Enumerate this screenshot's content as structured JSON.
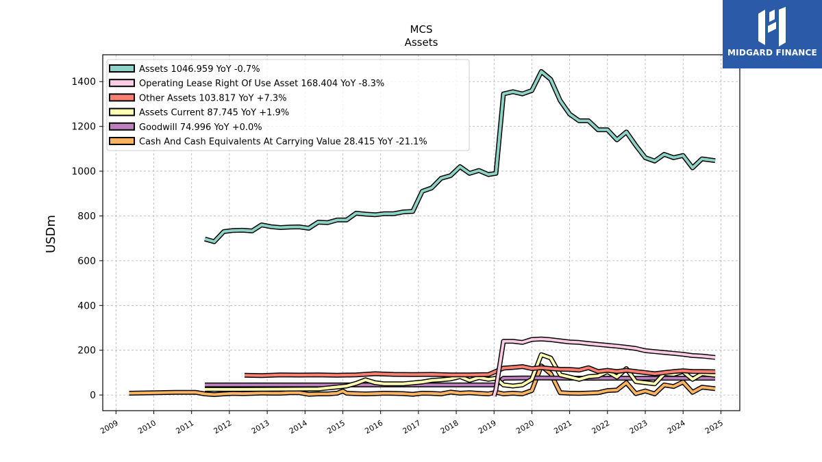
{
  "logo": {
    "text": "MIDGARD FINANCE",
    "icon": "mh-monogram-icon",
    "background": "#2a5aa8"
  },
  "chart_data": {
    "type": "line",
    "title": "MCS",
    "subtitle": "Assets",
    "ylabel": "USDm",
    "xlabel": "",
    "xlim": [
      2008.65,
      2025.5
    ],
    "ylim": [
      -70,
      1520
    ],
    "yticks": [
      0,
      200,
      400,
      600,
      800,
      1000,
      1200,
      1400
    ],
    "xticks": [
      2009,
      2010,
      2011,
      2012,
      2013,
      2014,
      2015,
      2016,
      2017,
      2018,
      2019,
      2020,
      2021,
      2022,
      2023,
      2024,
      2025
    ],
    "grid": true,
    "legend_position": "top-left",
    "series": [
      {
        "name": "Assets",
        "legend": "Assets  1046.959 YoY -0.7%",
        "color": "#8dd3c7",
        "points": [
          [
            2011.35,
            697
          ],
          [
            2011.6,
            685
          ],
          [
            2011.85,
            730
          ],
          [
            2012.1,
            735
          ],
          [
            2012.35,
            736
          ],
          [
            2012.6,
            733
          ],
          [
            2012.85,
            760
          ],
          [
            2013.1,
            752
          ],
          [
            2013.35,
            748
          ],
          [
            2013.6,
            750
          ],
          [
            2013.85,
            751
          ],
          [
            2014.1,
            745
          ],
          [
            2014.35,
            772
          ],
          [
            2014.6,
            770
          ],
          [
            2014.85,
            782
          ],
          [
            2015.1,
            782
          ],
          [
            2015.35,
            812
          ],
          [
            2015.6,
            808
          ],
          [
            2015.85,
            805
          ],
          [
            2016.1,
            810
          ],
          [
            2016.35,
            810
          ],
          [
            2016.6,
            818
          ],
          [
            2016.85,
            820
          ],
          [
            2017.1,
            910
          ],
          [
            2017.35,
            925
          ],
          [
            2017.6,
            968
          ],
          [
            2017.85,
            980
          ],
          [
            2018.1,
            1020
          ],
          [
            2018.35,
            990
          ],
          [
            2018.6,
            1003
          ],
          [
            2018.85,
            985
          ],
          [
            2019.05,
            990
          ],
          [
            2019.25,
            1345
          ],
          [
            2019.5,
            1355
          ],
          [
            2019.75,
            1345
          ],
          [
            2020.0,
            1360
          ],
          [
            2020.25,
            1445
          ],
          [
            2020.5,
            1410
          ],
          [
            2020.75,
            1315
          ],
          [
            2021.0,
            1255
          ],
          [
            2021.25,
            1225
          ],
          [
            2021.5,
            1225
          ],
          [
            2021.75,
            1185
          ],
          [
            2022.0,
            1185
          ],
          [
            2022.25,
            1140
          ],
          [
            2022.5,
            1175
          ],
          [
            2022.75,
            1115
          ],
          [
            2023.0,
            1060
          ],
          [
            2023.25,
            1045
          ],
          [
            2023.5,
            1075
          ],
          [
            2023.75,
            1060
          ],
          [
            2024.0,
            1070
          ],
          [
            2024.25,
            1015
          ],
          [
            2024.5,
            1055
          ],
          [
            2024.85,
            1047
          ]
        ]
      },
      {
        "name": "Operating Lease Right Of Use Asset",
        "legend": "Operating Lease Right Of Use Asset  168.404 YoY -8.3%",
        "color": "#fccde5",
        "points": [
          [
            2019.0,
            -5
          ],
          [
            2019.05,
            25
          ],
          [
            2019.25,
            240
          ],
          [
            2019.5,
            240
          ],
          [
            2019.75,
            235
          ],
          [
            2020.0,
            248
          ],
          [
            2020.25,
            250
          ],
          [
            2020.5,
            247
          ],
          [
            2020.75,
            242
          ],
          [
            2021.0,
            237
          ],
          [
            2021.25,
            235
          ],
          [
            2021.5,
            230
          ],
          [
            2021.75,
            226
          ],
          [
            2022.0,
            222
          ],
          [
            2022.25,
            218
          ],
          [
            2022.5,
            213
          ],
          [
            2022.75,
            208
          ],
          [
            2023.0,
            198
          ],
          [
            2023.25,
            194
          ],
          [
            2023.5,
            190
          ],
          [
            2023.75,
            186
          ],
          [
            2024.0,
            182
          ],
          [
            2024.25,
            176
          ],
          [
            2024.5,
            174
          ],
          [
            2024.85,
            168
          ]
        ]
      },
      {
        "name": "Other Assets",
        "legend": "Other Assets  103.817 YoY +7.3%",
        "color": "#fb8072",
        "points": [
          [
            2012.4,
            88
          ],
          [
            2012.85,
            87
          ],
          [
            2013.35,
            90
          ],
          [
            2013.85,
            89
          ],
          [
            2014.35,
            90
          ],
          [
            2014.85,
            88
          ],
          [
            2015.35,
            90
          ],
          [
            2015.85,
            95
          ],
          [
            2016.35,
            92
          ],
          [
            2016.85,
            91
          ],
          [
            2017.35,
            92
          ],
          [
            2017.85,
            90
          ],
          [
            2018.35,
            90
          ],
          [
            2018.85,
            91
          ],
          [
            2019.25,
            120
          ],
          [
            2019.5,
            123
          ],
          [
            2019.75,
            127
          ],
          [
            2020.0,
            118
          ],
          [
            2020.25,
            122
          ],
          [
            2020.5,
            118
          ],
          [
            2020.75,
            115
          ],
          [
            2021.0,
            114
          ],
          [
            2021.25,
            111
          ],
          [
            2021.5,
            122
          ],
          [
            2021.75,
            105
          ],
          [
            2022.0,
            110
          ],
          [
            2022.25,
            105
          ],
          [
            2022.5,
            110
          ],
          [
            2022.75,
            105
          ],
          [
            2023.0,
            100
          ],
          [
            2023.25,
            95
          ],
          [
            2023.5,
            100
          ],
          [
            2023.75,
            105
          ],
          [
            2024.0,
            108
          ],
          [
            2024.25,
            105
          ],
          [
            2024.5,
            105
          ],
          [
            2024.85,
            104
          ]
        ]
      },
      {
        "name": "Assets Current",
        "legend": "Assets Current  87.745 YoY +1.9%",
        "color": "#ffffb3",
        "points": [
          [
            2011.35,
            25
          ],
          [
            2012.35,
            25
          ],
          [
            2013.35,
            26
          ],
          [
            2014.35,
            27
          ],
          [
            2015.1,
            40
          ],
          [
            2015.35,
            52
          ],
          [
            2015.6,
            68
          ],
          [
            2015.85,
            55
          ],
          [
            2016.1,
            50
          ],
          [
            2016.6,
            50
          ],
          [
            2017.1,
            58
          ],
          [
            2017.35,
            65
          ],
          [
            2017.6,
            68
          ],
          [
            2017.85,
            72
          ],
          [
            2018.1,
            82
          ],
          [
            2018.35,
            65
          ],
          [
            2018.6,
            78
          ],
          [
            2018.85,
            70
          ],
          [
            2019.05,
            75
          ],
          [
            2019.25,
            45
          ],
          [
            2019.5,
            40
          ],
          [
            2019.75,
            45
          ],
          [
            2020.0,
            70
          ],
          [
            2020.25,
            180
          ],
          [
            2020.5,
            165
          ],
          [
            2020.75,
            90
          ],
          [
            2021.0,
            80
          ],
          [
            2021.25,
            70
          ],
          [
            2021.5,
            82
          ],
          [
            2021.75,
            85
          ],
          [
            2022.0,
            105
          ],
          [
            2022.25,
            80
          ],
          [
            2022.5,
            118
          ],
          [
            2022.75,
            60
          ],
          [
            2023.0,
            55
          ],
          [
            2023.25,
            50
          ],
          [
            2023.5,
            95
          ],
          [
            2023.75,
            92
          ],
          [
            2024.0,
            105
          ],
          [
            2024.25,
            70
          ],
          [
            2024.5,
            95
          ],
          [
            2024.85,
            88
          ]
        ]
      },
      {
        "name": "Goodwill",
        "legend": "Goodwill  74.996 YoY +0.0%",
        "color": "#bc80bd",
        "points": [
          [
            2011.35,
            45
          ],
          [
            2012.35,
            45
          ],
          [
            2013.35,
            45
          ],
          [
            2014.35,
            45
          ],
          [
            2015.35,
            45
          ],
          [
            2016.35,
            45
          ],
          [
            2017.35,
            45
          ],
          [
            2018.35,
            45
          ],
          [
            2019.05,
            45
          ],
          [
            2019.25,
            75
          ],
          [
            2019.75,
            76
          ],
          [
            2020.25,
            76
          ],
          [
            2021.25,
            75
          ],
          [
            2022.25,
            75
          ],
          [
            2023.25,
            75
          ],
          [
            2024.25,
            75
          ],
          [
            2024.85,
            75
          ]
        ]
      },
      {
        "name": "Cash And Cash Equivalents At Carrying Value",
        "legend": "Cash And Cash Equivalents At Carrying Value  28.415 YoY -21.1%",
        "color": "#fdb462",
        "points": [
          [
            2009.35,
            8
          ],
          [
            2010.1,
            10
          ],
          [
            2010.6,
            12
          ],
          [
            2011.1,
            12
          ],
          [
            2011.35,
            5
          ],
          [
            2011.6,
            2
          ],
          [
            2011.85,
            5
          ],
          [
            2012.1,
            7
          ],
          [
            2012.35,
            6
          ],
          [
            2012.6,
            7
          ],
          [
            2012.85,
            9
          ],
          [
            2013.1,
            8
          ],
          [
            2013.35,
            8
          ],
          [
            2013.6,
            10
          ],
          [
            2013.85,
            10
          ],
          [
            2014.1,
            3
          ],
          [
            2014.35,
            5
          ],
          [
            2014.6,
            5
          ],
          [
            2014.85,
            8
          ],
          [
            2015.0,
            18
          ],
          [
            2015.1,
            8
          ],
          [
            2015.35,
            6
          ],
          [
            2015.6,
            5
          ],
          [
            2015.85,
            6
          ],
          [
            2016.1,
            8
          ],
          [
            2016.35,
            7
          ],
          [
            2016.6,
            6
          ],
          [
            2016.85,
            3
          ],
          [
            2017.1,
            8
          ],
          [
            2017.35,
            7
          ],
          [
            2017.6,
            5
          ],
          [
            2017.85,
            13
          ],
          [
            2018.1,
            8
          ],
          [
            2018.35,
            10
          ],
          [
            2018.6,
            7
          ],
          [
            2018.85,
            5
          ],
          [
            2019.05,
            12
          ],
          [
            2019.25,
            5
          ],
          [
            2019.5,
            8
          ],
          [
            2019.75,
            5
          ],
          [
            2020.0,
            20
          ],
          [
            2020.25,
            130
          ],
          [
            2020.5,
            95
          ],
          [
            2020.75,
            10
          ],
          [
            2021.0,
            8
          ],
          [
            2021.25,
            7
          ],
          [
            2021.5,
            9
          ],
          [
            2021.75,
            10
          ],
          [
            2022.0,
            20
          ],
          [
            2022.25,
            22
          ],
          [
            2022.5,
            55
          ],
          [
            2022.75,
            6
          ],
          [
            2023.0,
            18
          ],
          [
            2023.25,
            5
          ],
          [
            2023.5,
            45
          ],
          [
            2023.75,
            38
          ],
          [
            2024.0,
            58
          ],
          [
            2024.25,
            12
          ],
          [
            2024.5,
            35
          ],
          [
            2024.85,
            28
          ]
        ]
      }
    ]
  }
}
